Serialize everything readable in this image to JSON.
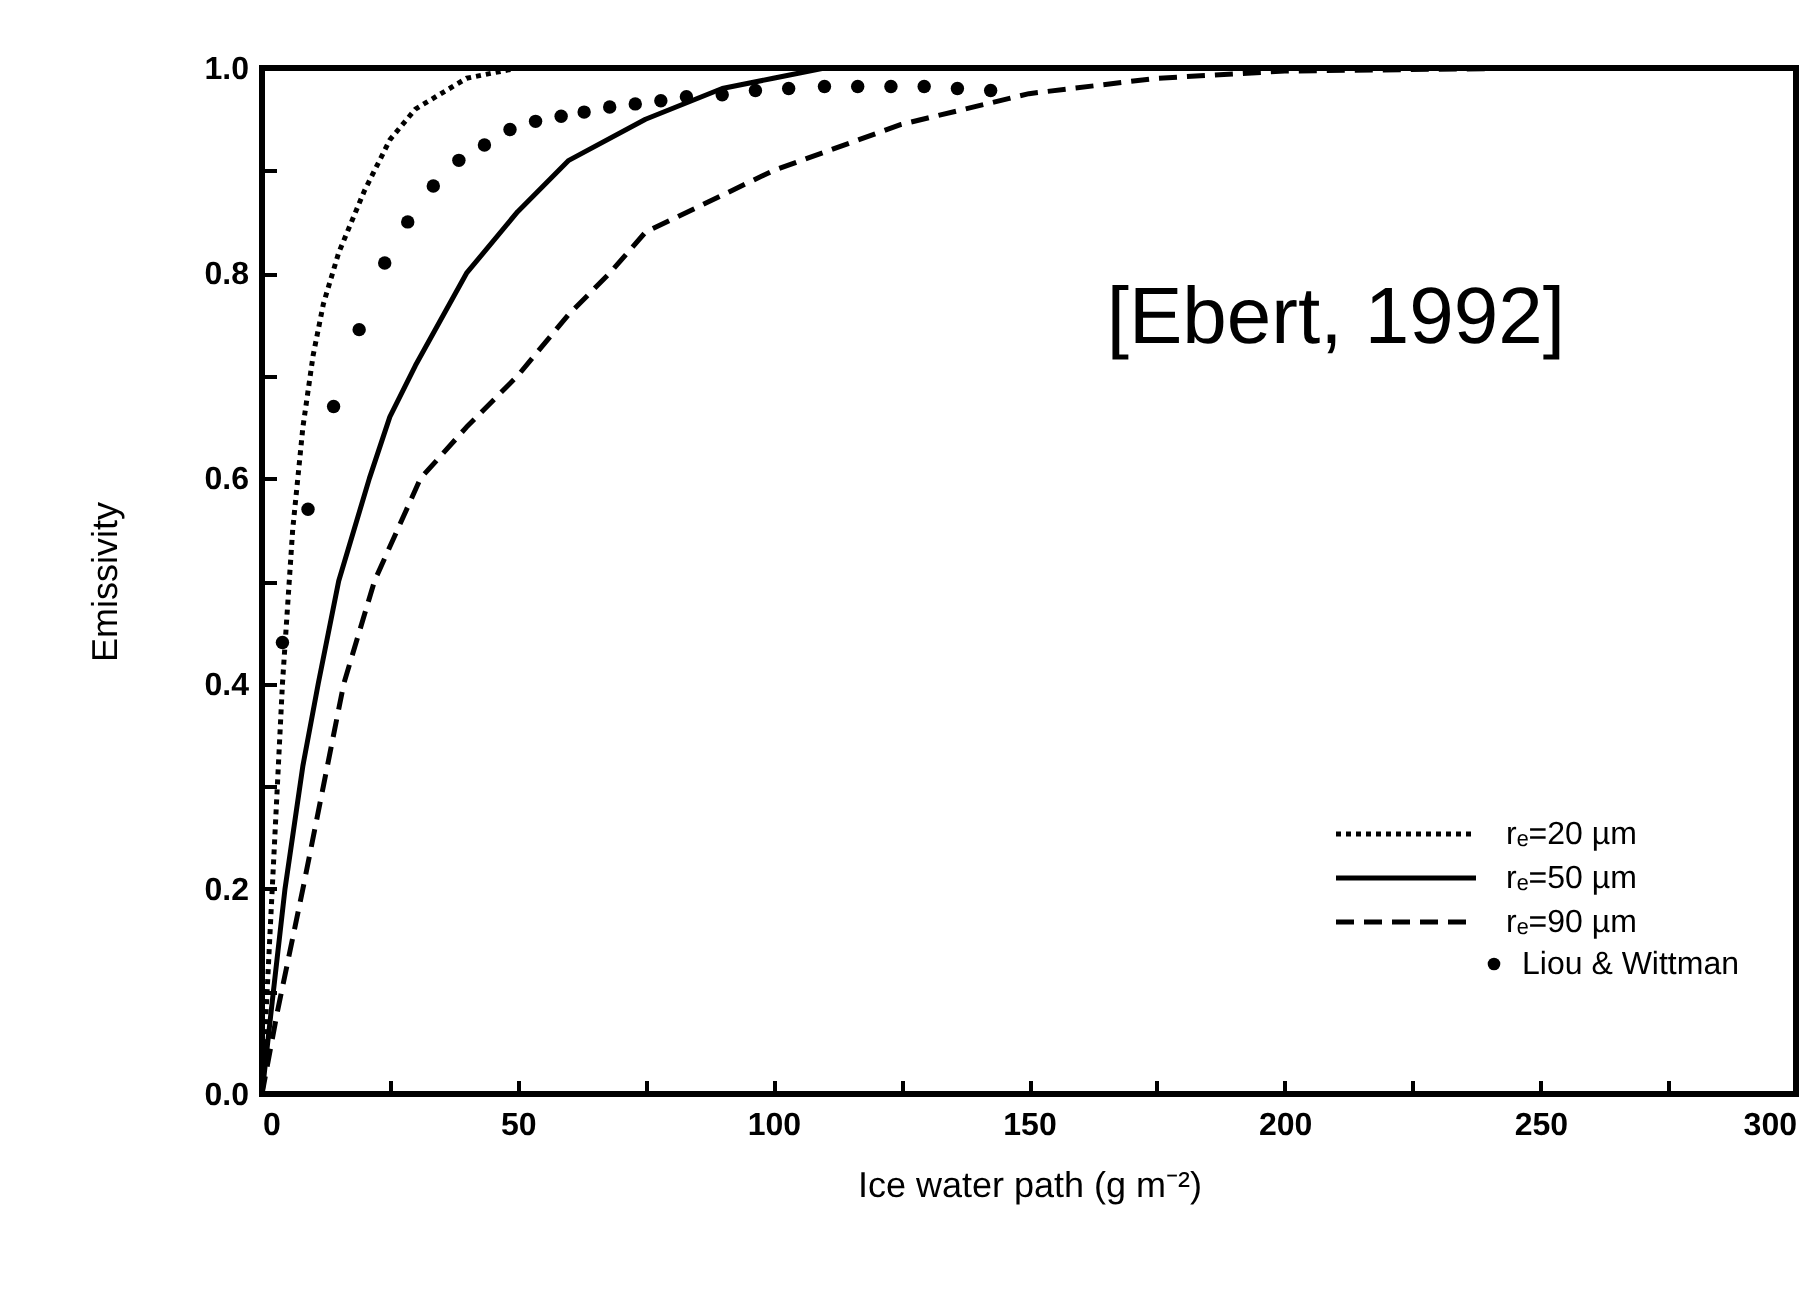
{
  "chart_data": {
    "type": "line",
    "xlabel": "Ice water path  (g m⁻²)",
    "ylabel": "Emissivity",
    "annotations": [
      "[Ebert, 1992]"
    ],
    "xlim": [
      0,
      300
    ],
    "ylim": [
      0,
      1
    ],
    "xticks": [
      0,
      {
        "value": 25,
        "label": null
      },
      50,
      {
        "value": 75,
        "label": null
      },
      100,
      {
        "value": 125,
        "label": null
      },
      150,
      {
        "value": 175,
        "label": null
      },
      200,
      {
        "value": 225,
        "label": null
      },
      250,
      {
        "value": 275,
        "label": null
      },
      300
    ],
    "yticks": [
      {
        "value": 0,
        "label": "0.0"
      },
      {
        "value": 0.1,
        "label": null
      },
      0.2,
      {
        "value": 0.3,
        "label": null
      },
      0.4,
      {
        "value": 0.5,
        "label": null
      },
      0.6,
      {
        "value": 0.7,
        "label": null
      },
      0.8,
      {
        "value": 0.9,
        "label": null
      },
      {
        "value": 1,
        "label": "1.0"
      }
    ],
    "grid": false,
    "legend": "bottom right",
    "series": [
      {
        "name": "rₑ=20 µm",
        "color": "#000000",
        "line_style": "dotted",
        "x": [
          0,
          2,
          4,
          6,
          8,
          10,
          12,
          15,
          20,
          25,
          30,
          40,
          50
        ],
        "values": [
          0,
          0.2,
          0.4,
          0.55,
          0.65,
          0.72,
          0.77,
          0.82,
          0.88,
          0.93,
          0.96,
          0.99,
          1.0
        ]
      },
      {
        "name": "rₑ=50 µm",
        "color": "#000000",
        "line_style": "solid",
        "x": [
          0,
          2,
          4.5,
          8,
          11,
          15,
          21,
          25,
          30,
          40,
          50,
          60,
          75,
          90,
          100,
          110
        ],
        "values": [
          0,
          0.09,
          0.2,
          0.32,
          0.4,
          0.5,
          0.6,
          0.66,
          0.71,
          0.8,
          0.86,
          0.91,
          0.95,
          0.98,
          0.99,
          1.0
        ]
      },
      {
        "name": "rₑ=90 µm",
        "color": "#000000",
        "line_style": "dashed",
        "x": [
          0,
          3,
          8,
          12,
          16,
          22,
          31,
          40,
          50,
          60,
          68,
          75,
          100,
          125,
          150,
          175,
          200,
          250
        ],
        "values": [
          0,
          0.08,
          0.2,
          0.3,
          0.4,
          0.5,
          0.6,
          0.65,
          0.7,
          0.76,
          0.8,
          0.84,
          0.9,
          0.945,
          0.975,
          0.99,
          0.997,
          1.0
        ]
      },
      {
        "name": "Liou & Wittman",
        "color": "#000000",
        "type": "scatter",
        "marker": "circle",
        "x": [
          4,
          9,
          14,
          19,
          24,
          28.5,
          33.5,
          38.5,
          43.5,
          48.5,
          53.5,
          58.5,
          63,
          68,
          73,
          78,
          83,
          90,
          96.5,
          103,
          110,
          116.5,
          123,
          129.5,
          136,
          142.5
        ],
        "values": [
          0.44,
          0.57,
          0.67,
          0.745,
          0.81,
          0.85,
          0.885,
          0.91,
          0.925,
          0.94,
          0.948,
          0.953,
          0.957,
          0.962,
          0.965,
          0.968,
          0.972,
          0.974,
          0.978,
          0.98,
          0.982,
          0.982,
          0.982,
          0.982,
          0.98,
          0.978
        ]
      }
    ]
  }
}
